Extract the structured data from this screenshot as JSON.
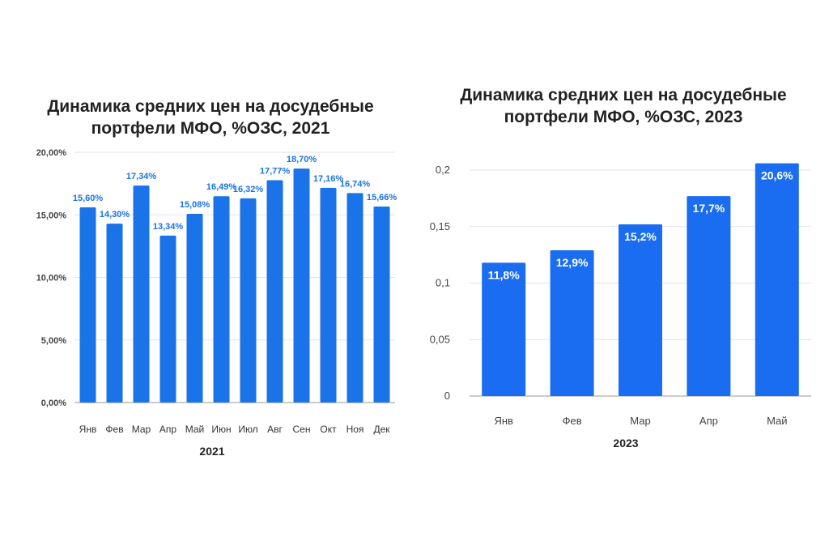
{
  "chart_data": [
    {
      "type": "bar",
      "title_lines": [
        "Динамика средних цен на досудебные",
        "портфели МФО, %ОЗС, 2021"
      ],
      "xlabel": "2021",
      "ylabel": "",
      "categories": [
        "Янв",
        "Фев",
        "Мар",
        "Апр",
        "Май",
        "Июн",
        "Июл",
        "Авг",
        "Сен",
        "Окт",
        "Ноя",
        "Дек"
      ],
      "values": [
        15.6,
        14.3,
        17.34,
        13.34,
        15.08,
        16.49,
        16.32,
        17.77,
        18.7,
        17.16,
        16.74,
        15.66
      ],
      "data_labels": [
        "15,60%",
        "14,30%",
        "17,34%",
        "13,34%",
        "15,08%",
        "16,49%",
        "16,32%",
        "17,77%",
        "18,70%",
        "17,16%",
        "16,74%",
        "15,66%"
      ],
      "yticks": [
        0,
        5,
        10,
        15,
        20
      ],
      "ytick_labels": [
        "0,00%",
        "5,00%",
        "10,00%",
        "15,00%",
        "20,00%"
      ],
      "ylim": [
        0,
        20
      ],
      "grid": true,
      "bar_color": "#1a73e8",
      "label_color": "#1a73e8"
    },
    {
      "type": "bar",
      "title_lines": [
        "Динамика средних цен на досудебные",
        "портфели МФО, %ОЗС, 2023"
      ],
      "xlabel": "2023",
      "ylabel": "",
      "categories": [
        "Янв",
        "Фев",
        "Мар",
        "Апр",
        "Май"
      ],
      "values": [
        0.118,
        0.129,
        0.152,
        0.177,
        0.206
      ],
      "data_labels": [
        "11,8%",
        "12,9%",
        "15,2%",
        "17,7%",
        "20,6%"
      ],
      "yticks": [
        0,
        0.05,
        0.1,
        0.15,
        0.2
      ],
      "ytick_labels": [
        "0",
        "0,05",
        "0,1",
        "0,15",
        "0,2"
      ],
      "ylim": [
        0,
        0.2
      ],
      "grid": true,
      "bar_color": "#1a6cf0",
      "label_color": "#ffffff"
    }
  ]
}
